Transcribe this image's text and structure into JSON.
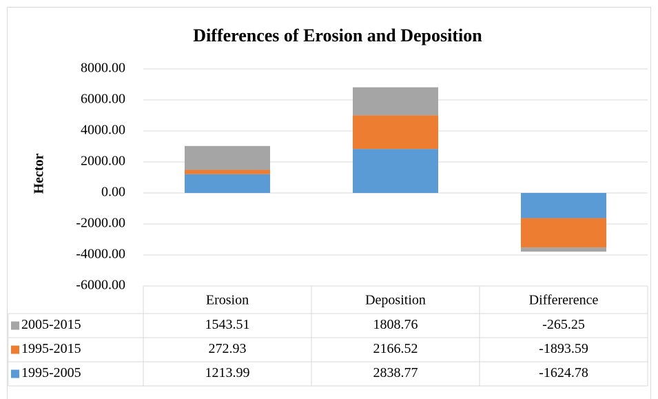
{
  "chart_data": {
    "type": "bar",
    "stacked": true,
    "title": "Differences of Erosion and Deposition",
    "y_label": "Hector",
    "categories": [
      "Erosion",
      "Deposition",
      "Differerence"
    ],
    "series": [
      {
        "name": "1995-2005",
        "color": "#5b9bd5",
        "values": [
          1213.99,
          2838.77,
          -1624.78
        ]
      },
      {
        "name": "1995-2015",
        "color": "#ed7d31",
        "values": [
          272.93,
          2166.52,
          -1893.59
        ]
      },
      {
        "name": "2005-2015",
        "color": "#a5a5a5",
        "values": [
          1543.51,
          1808.76,
          -265.25
        ]
      }
    ],
    "ylim": [
      -6000,
      8000
    ],
    "yticks": [
      {
        "value": -6000,
        "label": "-6000.00"
      },
      {
        "value": -4000,
        "label": "-4000.00"
      },
      {
        "value": -2000,
        "label": "-2000.00"
      },
      {
        "value": 0,
        "label": "0.00"
      },
      {
        "value": 2000,
        "label": "2000.00"
      },
      {
        "value": 4000,
        "label": "4000.00"
      },
      {
        "value": 6000,
        "label": "6000.00"
      },
      {
        "value": 8000,
        "label": "8000.00"
      }
    ],
    "grid": true,
    "data_table": true
  }
}
